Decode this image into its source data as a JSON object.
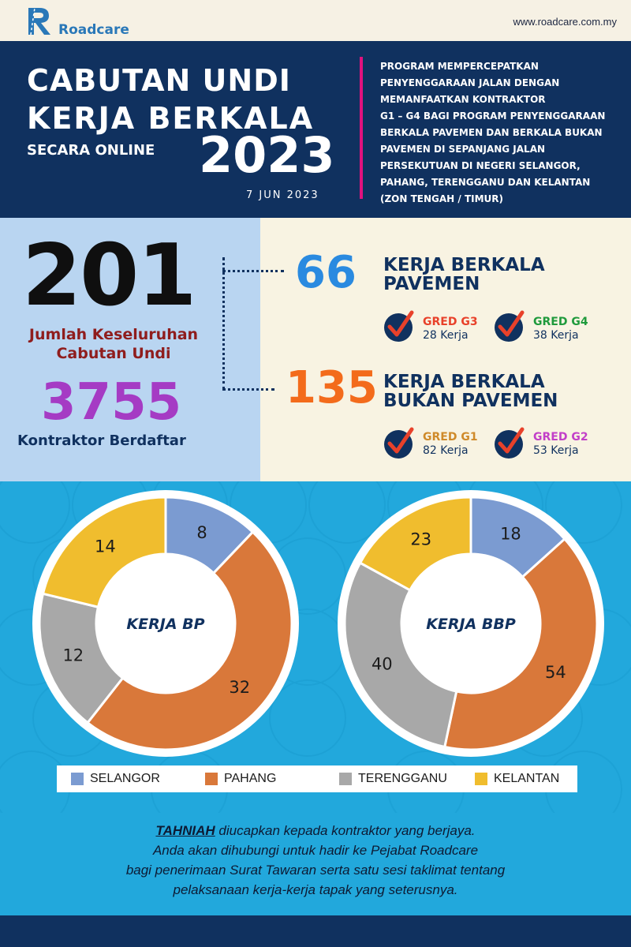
{
  "brand": {
    "name": "Roadcare",
    "url": "www.roadcare.com.my"
  },
  "header": {
    "title_line1": "CABUTAN UNDI",
    "title_line2": "KERJA BERKALA",
    "subtitle": "SECARA ONLINE",
    "year": "2023",
    "date": "7 JUN 2023",
    "description_lines": [
      "PROGRAM MEMPERCEPATKAN",
      "PENYENGGARAAN JALAN DENGAN",
      "MEMANFAATKAN KONTRAKTOR",
      "G1 – G4 BAGI PROGRAM PENYENGGARAAN",
      "BERKALA PAVEMEN DAN BERKALA BUKAN",
      "PAVEMEN DI SEPANJANG JALAN",
      "PERSEKUTUAN DI NEGERI SELANGOR,",
      "PAHANG, TERENGGANU DAN KELANTAN",
      "(ZON TENGAH / TIMUR)"
    ]
  },
  "stats": {
    "total_draws": "201",
    "total_draws_label_line1": "Jumlah Keseluruhan",
    "total_draws_label_line2": "Cabutan Undi",
    "contractors": "3755",
    "contractors_label": "Kontraktor Berdaftar",
    "pavement": {
      "count": "66",
      "title_line1": "KERJA BERKALA",
      "title_line2": "PAVEMEN",
      "grades": [
        {
          "grade": "GRED G3",
          "jobs": "28 Kerja",
          "color": "#e8412a"
        },
        {
          "grade": "GRED G4",
          "jobs": "38 Kerja",
          "color": "#1f9a3c"
        }
      ]
    },
    "non_pavement": {
      "count": "135",
      "title_line1": "KERJA BERKALA",
      "title_line2": "BUKAN PAVEMEN",
      "grades": [
        {
          "grade": "GRED G1",
          "jobs": "82 Kerja",
          "color": "#cf8a2a"
        },
        {
          "grade": "GRED G2",
          "jobs": "53 Kerja",
          "color": "#c23fc8"
        }
      ]
    }
  },
  "chart_data": [
    {
      "type": "pie",
      "title": "KERJA BP",
      "categories": [
        "SELANGOR",
        "PAHANG",
        "TERENGGANU",
        "KELANTAN"
      ],
      "values": [
        8,
        32,
        12,
        14
      ]
    },
    {
      "type": "pie",
      "title": "KERJA BBP",
      "categories": [
        "SELANGOR",
        "PAHANG",
        "TERENGGANU",
        "KELANTAN"
      ],
      "values": [
        18,
        54,
        40,
        23
      ]
    }
  ],
  "legend": [
    {
      "label": "SELANGOR",
      "color": "#7b9bd1"
    },
    {
      "label": "PAHANG",
      "color": "#d9783a"
    },
    {
      "label": "TERENGGANU",
      "color": "#a8a8a8"
    },
    {
      "label": "KELANTAN",
      "color": "#f0bd2e"
    }
  ],
  "footer": {
    "tahniah": "TAHNIAH",
    "line1_rest": " diucapkan kepada kontraktor yang berjaya.",
    "line2": "Anda akan dihubungi untuk hadir ke Pejabat Roadcare",
    "line3": "bagi penerimaan Surat Tawaran serta satu sesi taklimat tentang",
    "line4": "pelaksanaan kerja-kerja tapak yang seterusnya."
  }
}
